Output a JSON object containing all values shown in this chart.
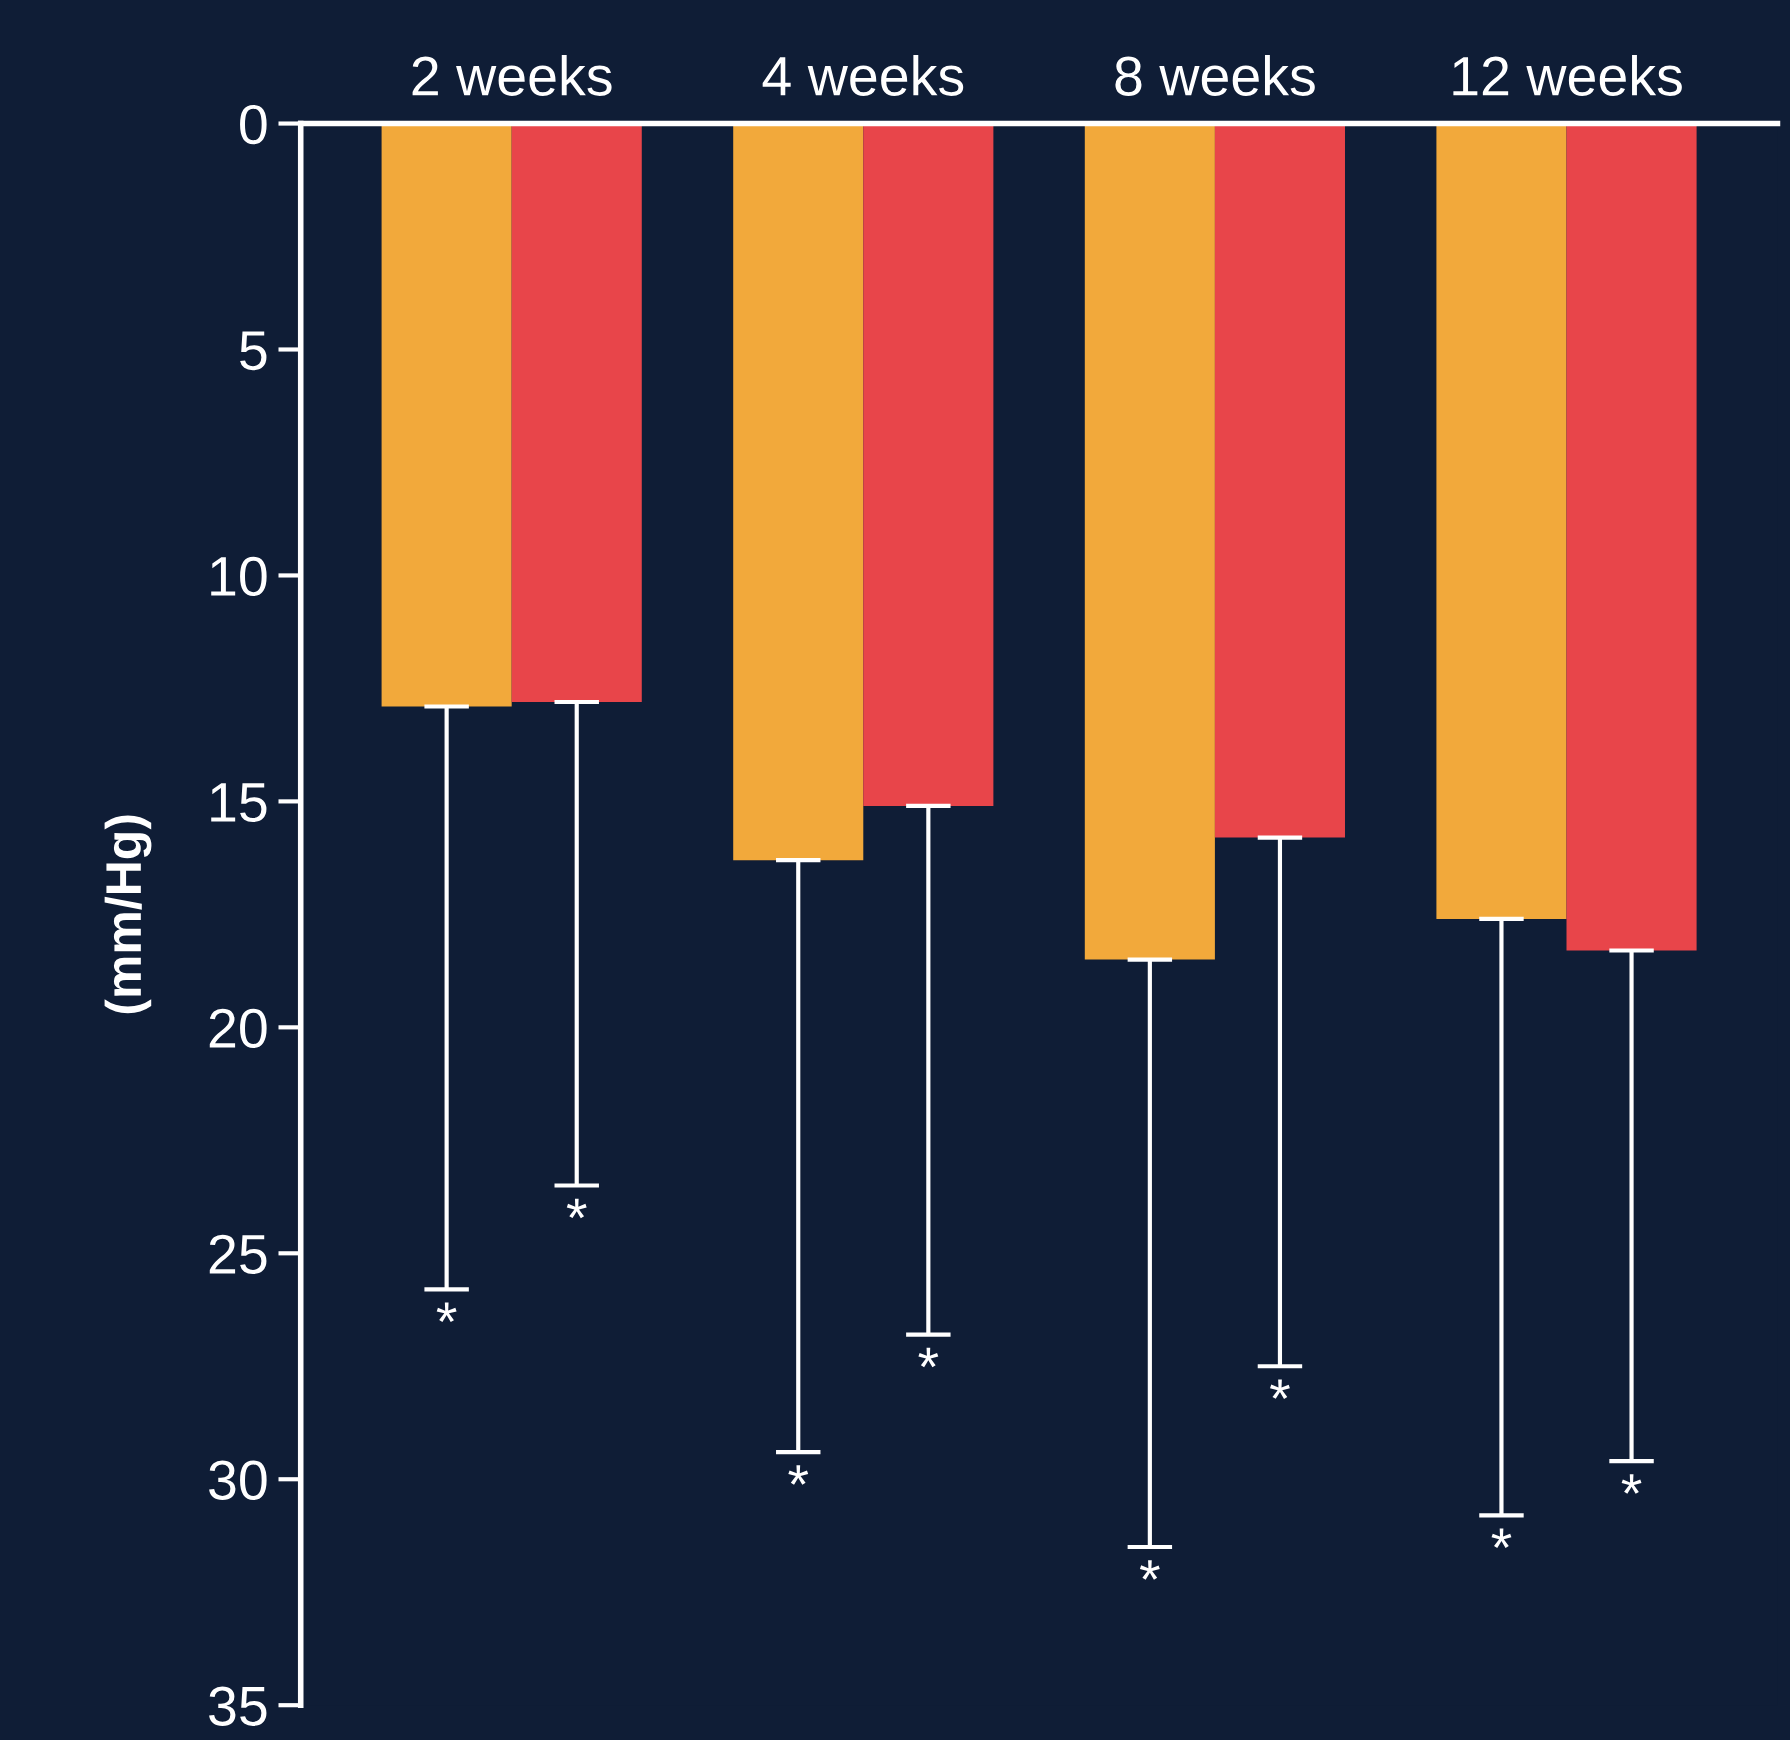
{
  "chart_data": {
    "type": "bar",
    "ylabel": "(mm/Hg)",
    "categories": [
      "2 weeks",
      "4 weeks",
      "8 weeks",
      "12 weeks"
    ],
    "series": [
      {
        "color": "#f2a93b",
        "values": [
          12.9,
          16.3,
          18.5,
          17.6
        ],
        "errors": [
          [
            12.9,
            25.8
          ],
          [
            16.3,
            29.4
          ],
          [
            18.5,
            31.5
          ],
          [
            17.6,
            30.8
          ]
        ]
      },
      {
        "color": "#e8454a",
        "values": [
          12.8,
          15.1,
          15.8,
          18.3
        ],
        "errors": [
          [
            12.8,
            23.5
          ],
          [
            15.1,
            26.8
          ],
          [
            15.8,
            27.5
          ],
          [
            18.3,
            29.6
          ]
        ]
      }
    ],
    "ylim": [
      35,
      0
    ],
    "yticks": [
      0,
      5,
      10,
      15,
      20,
      25,
      30,
      35
    ],
    "grid": false,
    "legend": false,
    "annotations": [
      "*",
      "*",
      "*",
      "*",
      "*",
      "*",
      "*",
      "*"
    ]
  }
}
